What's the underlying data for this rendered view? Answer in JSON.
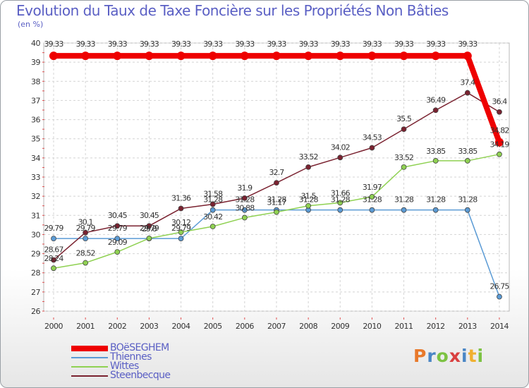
{
  "chart_data": {
    "type": "line",
    "title": "Evolution du Taux de Taxe Foncière sur les Propriétés Non Bâties",
    "subtitle": "(en %)",
    "xlabel": "",
    "ylabel": "",
    "ylim": [
      26,
      40
    ],
    "yticks": [
      26,
      27,
      28,
      29,
      30,
      31,
      32,
      33,
      34,
      35,
      36,
      37,
      38,
      39,
      40
    ],
    "categories": [
      "2000",
      "2001",
      "2002",
      "2003",
      "2004",
      "2005",
      "2006",
      "2007",
      "2008",
      "2009",
      "2010",
      "2011",
      "2012",
      "2013",
      "2014"
    ],
    "series": [
      {
        "name": "BOëSEGHEM",
        "color": "#ee0000",
        "values": [
          39.33,
          39.33,
          39.33,
          39.33,
          39.33,
          39.33,
          39.33,
          39.33,
          39.33,
          39.33,
          39.33,
          39.33,
          39.33,
          39.33,
          34.82
        ],
        "labels": [
          "39.33",
          "39.33",
          "39.33",
          "39.33",
          "39.33",
          "39.33",
          "39.33",
          "39.33",
          "39.33",
          "39.33",
          "39.33",
          "39.33",
          "39.33",
          "39.33",
          "34.82"
        ]
      },
      {
        "name": "Thiennes",
        "color": "#5b9bd5",
        "values": [
          29.79,
          29.79,
          29.79,
          29.79,
          29.79,
          31.28,
          31.28,
          31.28,
          31.28,
          31.28,
          31.28,
          31.28,
          31.28,
          31.28,
          26.75
        ],
        "labels": [
          "29.79",
          "29.79",
          "29.79",
          "29.79",
          "29.79",
          "31.28",
          "31.28",
          "31.28",
          "31.28",
          "31.28",
          "31.28",
          "31.28",
          "31.28",
          "31.28",
          "26.75"
        ]
      },
      {
        "name": "Wittes",
        "color": "#8fd152",
        "values": [
          28.24,
          28.52,
          29.09,
          29.8,
          30.12,
          30.42,
          30.88,
          31.17,
          31.5,
          31.66,
          31.97,
          33.52,
          33.85,
          33.85,
          34.19
        ],
        "labels": [
          "28.24",
          "28.52",
          "29.09",
          "29.8",
          "30.12",
          "30.42",
          "30.88",
          "31.17",
          "31.5",
          "31.66",
          "31.97",
          "33.52",
          "33.85",
          "33.85",
          "34.19"
        ]
      },
      {
        "name": "Steenbecque",
        "color": "#7a2230",
        "values": [
          28.67,
          30.1,
          30.45,
          30.45,
          31.36,
          31.58,
          31.9,
          32.7,
          33.52,
          34.02,
          34.53,
          35.5,
          36.49,
          37.4,
          36.4
        ],
        "labels": [
          "28.67",
          "30.1",
          "30.45",
          "30.45",
          "31.36",
          "31.58",
          "31.9",
          "32.7",
          "33.52",
          "34.02",
          "34.53",
          "35.5",
          "36.49",
          "37.4",
          "36.4"
        ]
      }
    ]
  },
  "logo": {
    "text": "Proxiti",
    "colors": [
      "#e8792b",
      "#4a86c5",
      "#7cc242",
      "#d94040",
      "#4a86c5",
      "#f0b030",
      "#7cc242"
    ]
  }
}
